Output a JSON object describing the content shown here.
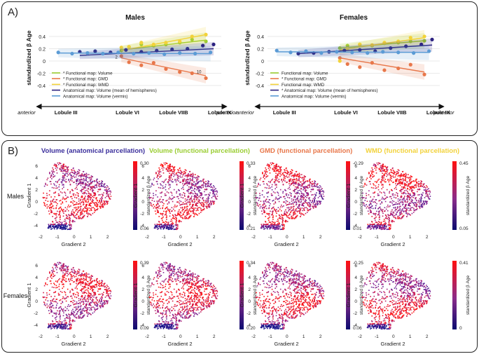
{
  "panel_a_label": "A)",
  "panel_b_label": "B)",
  "colors": {
    "volume_functional": "#9acd32",
    "gmd": "#e8774a",
    "wmd": "#f2d23a",
    "anat_hemi": "#2c2280",
    "anat_vermis": "#5b9bd5"
  },
  "chart_data": [
    {
      "type": "scatter",
      "title": "Males",
      "ylabel": "standardized β Age",
      "ylim": [
        -0.4,
        0.5
      ],
      "yticks": [
        "-0.4",
        "-0.2",
        "0",
        "0.2",
        "0.4"
      ],
      "xticks": [
        "Lobule III",
        "Lobule VI",
        "Lobule VIIB",
        "Lobule IX"
      ],
      "axis_start": "anterior",
      "axis_end": "posterior",
      "legend": [
        "* Functional map: Volume",
        "* Functional map: GMD",
        "* Functional map: WMD",
        "Anatomical map: Volume (mean of hemispheres)",
        "Anatomical map: Volume (vermis)"
      ],
      "point_labels": [
        "2",
        "10"
      ],
      "series": [
        {
          "name": "Functional map: Volume",
          "color_key": "volume_functional",
          "x": [
            4.7,
            5.2,
            6.0,
            6.8,
            7.6,
            8.5,
            9.3,
            10.2
          ],
          "values": [
            0.17,
            0.23,
            0.27,
            0.25,
            0.27,
            0.3,
            0.35,
            0.32
          ],
          "fit": [
            0.18,
            0.34
          ]
        },
        {
          "name": "Functional map: GMD",
          "color_key": "gmd",
          "x": [
            4.7,
            5.2,
            6.0,
            6.8,
            7.6,
            8.5,
            9.3,
            10.2
          ],
          "values": [
            0.08,
            -0.02,
            -0.07,
            -0.03,
            -0.13,
            -0.18,
            -0.2,
            -0.28
          ],
          "fit": [
            0.05,
            -0.24
          ]
        },
        {
          "name": "Functional map: WMD",
          "color_key": "wmd",
          "x": [
            4.7,
            5.2,
            6.0,
            6.8,
            7.6,
            8.5,
            9.3,
            10.2
          ],
          "values": [
            0.22,
            0.23,
            0.3,
            0.27,
            0.3,
            0.32,
            0.4,
            0.43
          ],
          "fit": [
            0.17,
            0.43
          ]
        },
        {
          "name": "Anatomical map: Volume (mean of hemispheres)",
          "color_key": "anat_hemi",
          "x": [
            2.0,
            3.0,
            4.0,
            5.0,
            6.0,
            7.0,
            8.0,
            9.0,
            10.0,
            10.7
          ],
          "values": [
            0.15,
            0.16,
            0.14,
            0.18,
            0.15,
            0.17,
            0.19,
            0.2,
            0.25,
            0.27
          ],
          "fit": [
            0.09,
            0.2
          ]
        },
        {
          "name": "Anatomical map: Volume (vermis)",
          "color_key": "anat_vermis",
          "x": [
            0.6,
            1.5,
            2.5,
            3.5,
            4.5,
            5.5,
            6.5,
            7.5,
            8.5,
            9.5,
            10.5
          ],
          "values": [
            0.14,
            0.12,
            0.13,
            0.12,
            0.14,
            0.12,
            0.13,
            0.11,
            0.13,
            0.12,
            0.14
          ],
          "fit": [
            0.13,
            0.12
          ]
        }
      ]
    },
    {
      "type": "scatter",
      "title": "Females",
      "ylabel": "standardized β Age",
      "ylim": [
        -0.4,
        0.5
      ],
      "yticks": [
        "-0.4",
        "-0.2",
        "0",
        "0.2",
        "0.4"
      ],
      "xticks": [
        "Lobule III",
        "Lobule VI",
        "Lobule VIIB",
        "Lobule IX"
      ],
      "axis_start": "anterior",
      "axis_end": "posterior",
      "legend": [
        "Functional map: Volume",
        "* Functional map: GMD",
        "Functional map: WMD",
        "* Anatomical map: Volume (mean of hemispheres)",
        "Anatomical map: Volume (vermis)"
      ],
      "point_labels": [],
      "series": [
        {
          "name": "Functional map: Volume",
          "color_key": "volume_functional",
          "x": [
            4.7,
            5.2,
            6.0,
            6.8,
            7.6,
            8.5,
            9.3,
            10.2
          ],
          "values": [
            0.21,
            0.25,
            0.27,
            0.25,
            0.29,
            0.3,
            0.32,
            0.33
          ],
          "fit": [
            0.21,
            0.33
          ]
        },
        {
          "name": "Functional map: GMD",
          "color_key": "gmd",
          "x": [
            4.7,
            5.2,
            6.0,
            6.8,
            7.6,
            8.5,
            9.3,
            10.2
          ],
          "values": [
            0.05,
            -0.05,
            -0.1,
            -0.03,
            -0.15,
            -0.12,
            -0.06,
            -0.22
          ],
          "fit": [
            0.05,
            -0.18
          ]
        },
        {
          "name": "Functional map: WMD",
          "color_key": "wmd",
          "x": [
            4.7,
            5.2,
            6.0,
            6.8,
            7.6,
            8.5,
            9.3,
            10.2
          ],
          "values": [
            0.0,
            0.2,
            0.27,
            0.26,
            0.3,
            0.32,
            0.38,
            0.4
          ],
          "fit": [
            0.18,
            0.38
          ]
        },
        {
          "name": "Anatomical map: Volume (mean of hemispheres)",
          "color_key": "anat_hemi",
          "x": [
            2.0,
            3.0,
            4.0,
            5.0,
            6.0,
            7.0,
            8.0,
            9.0,
            10.0,
            10.7
          ],
          "values": [
            0.12,
            0.13,
            0.15,
            0.17,
            0.18,
            0.16,
            0.21,
            0.24,
            0.27,
            0.35
          ],
          "fit": [
            0.12,
            0.26
          ]
        },
        {
          "name": "Anatomical map: Volume (vermis)",
          "color_key": "anat_vermis",
          "x": [
            0.6,
            1.5,
            2.5,
            3.5,
            4.5,
            5.5,
            6.5,
            7.5,
            8.5,
            9.5,
            10.5
          ],
          "values": [
            0.17,
            0.14,
            0.16,
            0.13,
            0.15,
            0.14,
            0.13,
            0.15,
            0.14,
            0.13,
            0.16
          ],
          "fit": [
            0.15,
            0.14
          ]
        }
      ]
    },
    {
      "type": "scatter",
      "title_prefix": "Volume (",
      "title_emph": "anatomical",
      "title_suffix": " parcellation)",
      "title_color": "#3b2f9c",
      "row_label": "Males",
      "xlabel": "Gradient 2",
      "ylabel": "Gradient 1",
      "xlim": [
        -2,
        2.6
      ],
      "ylim": [
        -5,
        7
      ],
      "xticks": [
        "-2",
        "-1",
        "0",
        "1",
        "2"
      ],
      "yticks": [
        "-4",
        "-2",
        "0",
        "2",
        "4",
        "6"
      ],
      "colorbar": {
        "top": "0.30",
        "bottom": "0.06",
        "label": "standardized β Age"
      }
    },
    {
      "type": "scatter",
      "title_prefix": "Volume (",
      "title_emph": "functional",
      "title_suffix": " parcellation)",
      "title_color": "#9acd32",
      "row_label": "Males",
      "xlabel": "Gradient 2",
      "ylabel": "Gradient 1",
      "xlim": [
        -2,
        2.6
      ],
      "ylim": [
        -5,
        7
      ],
      "xticks": [
        "-2",
        "-1",
        "0",
        "1",
        "2"
      ],
      "yticks": [
        "-4",
        "-2",
        "0",
        "2",
        "4",
        "6"
      ],
      "colorbar": {
        "top": "0.33",
        "bottom": "0.21",
        "label": "standardized β Age"
      }
    },
    {
      "type": "scatter",
      "title_prefix": "GMD (",
      "title_emph": "functional",
      "title_suffix": " parcellation)",
      "title_color": "#e8774a",
      "row_label": "Males",
      "xlabel": "Gradient 2",
      "ylabel": "Gradient 1",
      "xlim": [
        -2,
        2.6
      ],
      "ylim": [
        -5,
        7
      ],
      "xticks": [
        "-2",
        "-1",
        "0",
        "1",
        "2"
      ],
      "yticks": [
        "-4",
        "-2",
        "0",
        "2",
        "4",
        "6"
      ],
      "colorbar": {
        "top": "-0.29",
        "bottom": "0.01",
        "label": "standardized β Age"
      }
    },
    {
      "type": "scatter",
      "title_prefix": "WMD (",
      "title_emph": "functional",
      "title_suffix": " parcellation)",
      "title_color": "#f2d23a",
      "row_label": "Males",
      "xlabel": "Gradient 2",
      "ylabel": "Gradient 1",
      "xlim": [
        -2,
        2.6
      ],
      "ylim": [
        -5,
        7
      ],
      "xticks": [
        "-2",
        "-1",
        "0",
        "1",
        "2"
      ],
      "yticks": [
        "-4",
        "-2",
        "0",
        "2",
        "4",
        "6"
      ],
      "colorbar": {
        "top": "0.45",
        "bottom": "0.05",
        "label": "standardized β Age"
      }
    },
    {
      "type": "scatter",
      "row_label": "Females",
      "xlabel": "Gradient 2",
      "ylabel": "Gradient 1",
      "xlim": [
        -2,
        2.6
      ],
      "ylim": [
        -5,
        7
      ],
      "xticks": [
        "-2",
        "-1",
        "0",
        "1",
        "2"
      ],
      "yticks": [
        "-4",
        "-2",
        "0",
        "2",
        "4",
        "6"
      ],
      "colorbar": {
        "top": "0.39",
        "bottom": "0.09",
        "label": "standardized β Age"
      }
    },
    {
      "type": "scatter",
      "row_label": "Females",
      "xlabel": "Gradient 2",
      "ylabel": "Gradient 1",
      "xlim": [
        -2,
        2.6
      ],
      "ylim": [
        -5,
        7
      ],
      "xticks": [
        "-2",
        "-1",
        "0",
        "1",
        "2"
      ],
      "yticks": [
        "-4",
        "-2",
        "0",
        "2",
        "4",
        "6"
      ],
      "colorbar": {
        "top": "0.34",
        "bottom": "0.20",
        "label": "standardized β Age"
      }
    },
    {
      "type": "scatter",
      "row_label": "Females",
      "xlabel": "Gradient 2",
      "ylabel": "Gradient 1",
      "xlim": [
        -2,
        2.6
      ],
      "ylim": [
        -5,
        7
      ],
      "xticks": [
        "-2",
        "-1",
        "0",
        "1",
        "2"
      ],
      "yticks": [
        "-4",
        "-2",
        "0",
        "2",
        "4",
        "6"
      ],
      "colorbar": {
        "top": "-0.25",
        "bottom": "0.06",
        "label": "standardized β Age"
      }
    },
    {
      "type": "scatter",
      "row_label": "Females",
      "xlabel": "Gradient 2",
      "ylabel": "Gradient 1",
      "xlim": [
        -2,
        2.6
      ],
      "ylim": [
        -5,
        7
      ],
      "xticks": [
        "-2",
        "-1",
        "0",
        "1",
        "2"
      ],
      "yticks": [
        "-4",
        "-2",
        "0",
        "2",
        "4",
        "6"
      ],
      "colorbar": {
        "top": "0.41",
        "bottom": "0",
        "label": "standardized β Age"
      }
    }
  ]
}
